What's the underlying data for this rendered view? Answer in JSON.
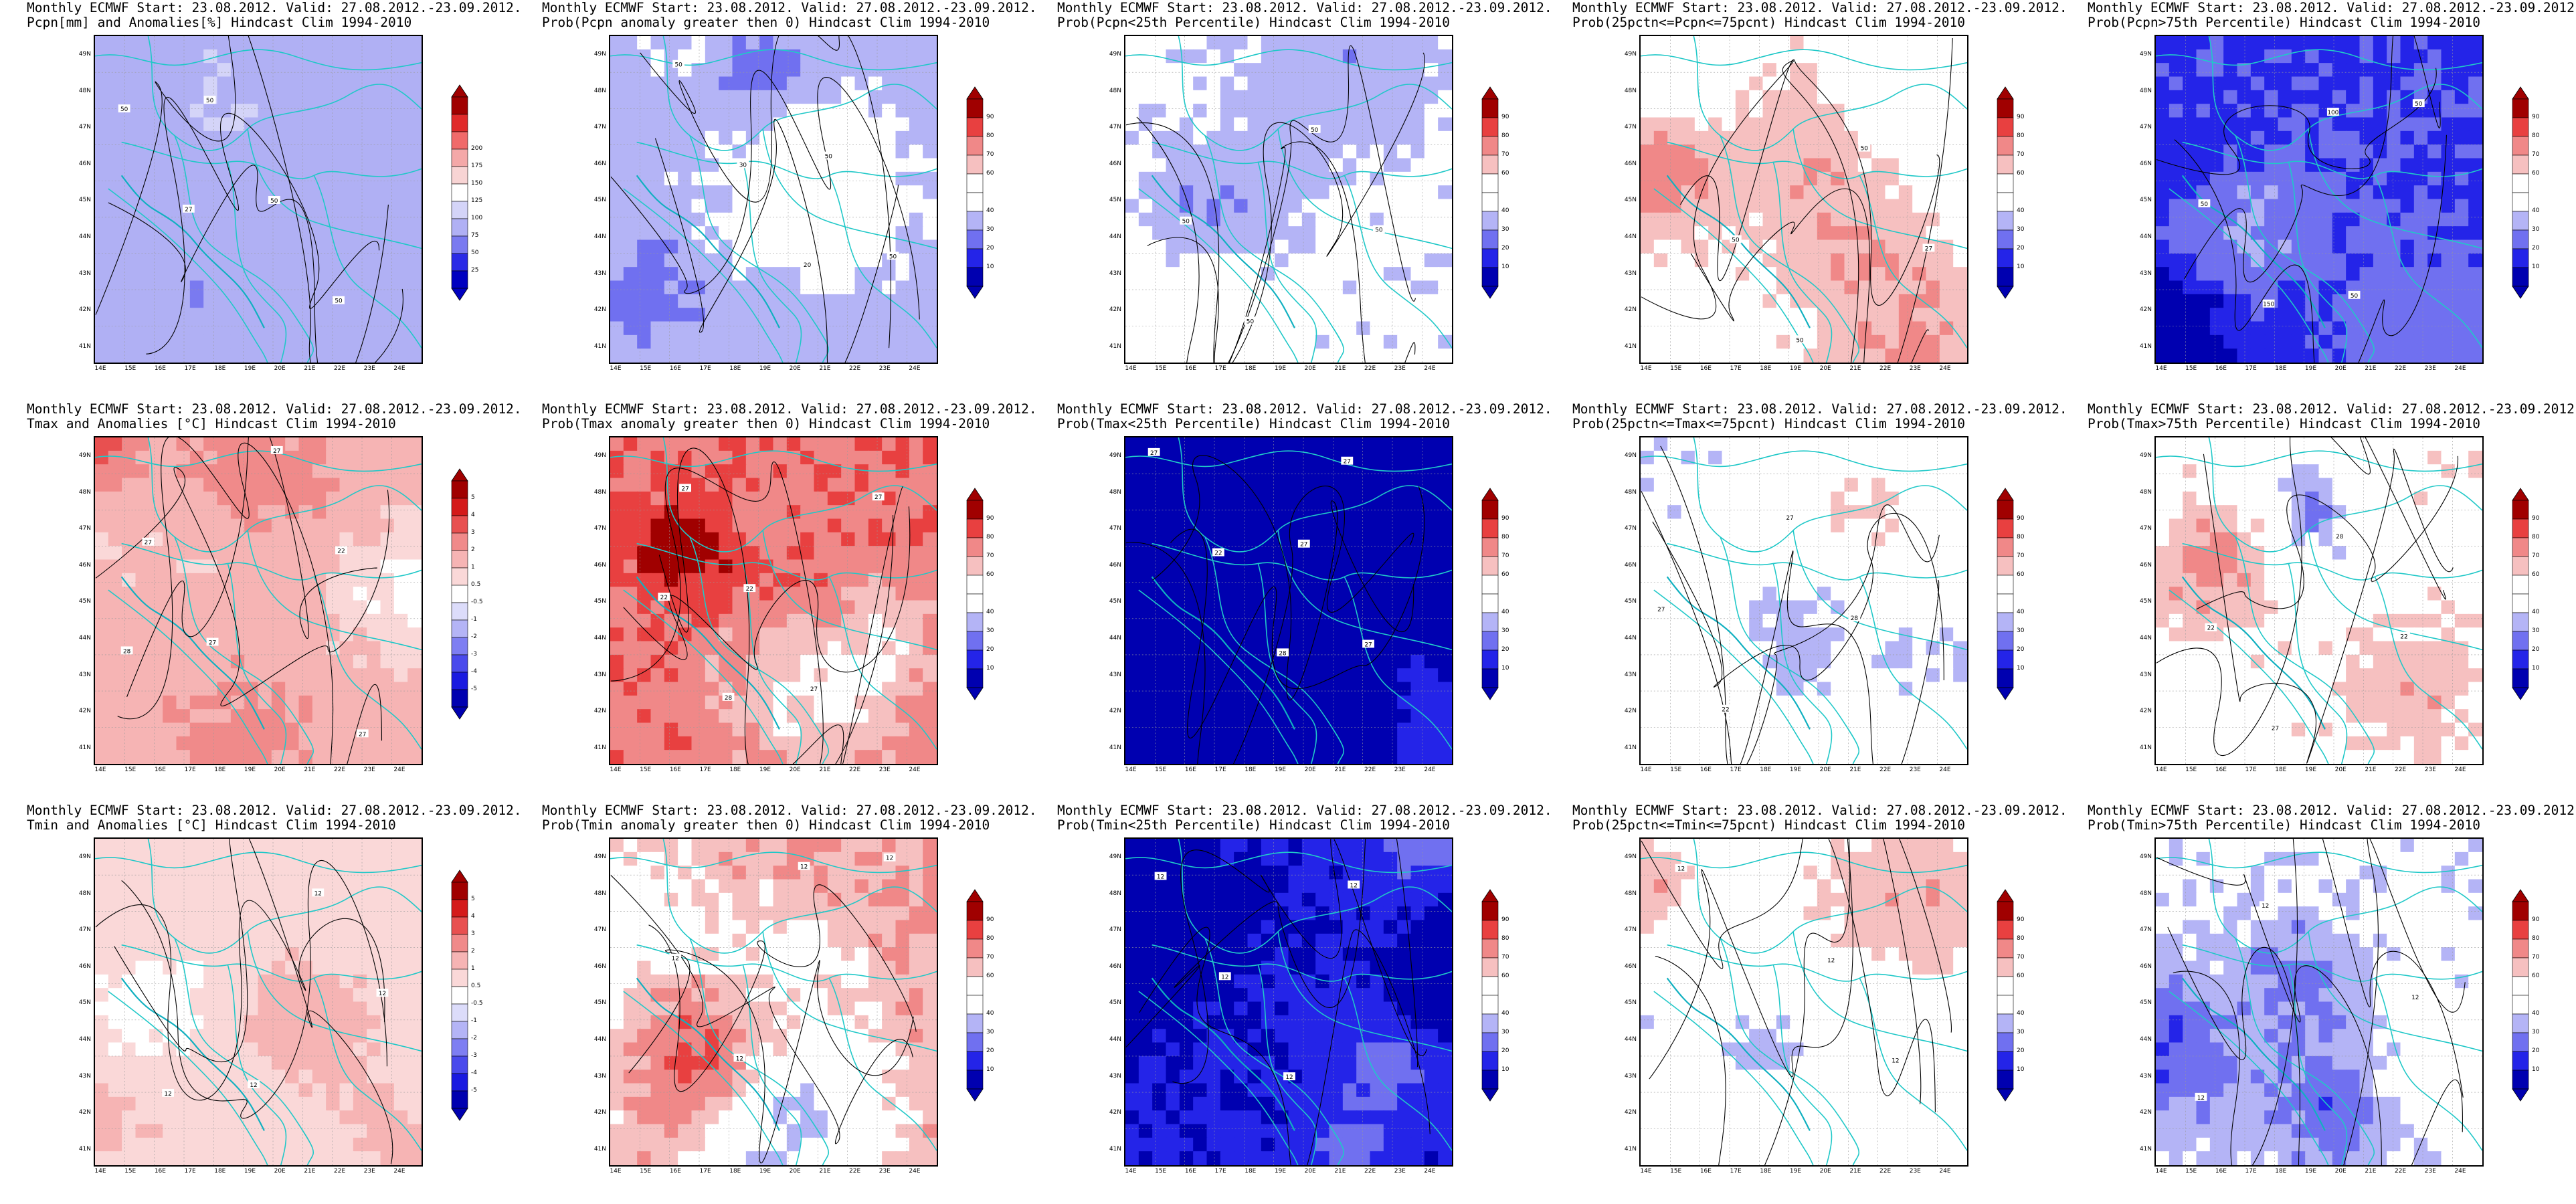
{
  "figure": {
    "title_line1": "Monthly ECMWF Start: 23.08.2012. Valid: 27.08.2012.-23.09.2012.",
    "lat_labels": [
      "49N",
      "48N",
      "47N",
      "46N",
      "45N",
      "44N",
      "43N",
      "42N",
      "41N"
    ],
    "lon_labels": [
      "14E",
      "15E",
      "16E",
      "17E",
      "18E",
      "19E",
      "20E",
      "21E",
      "22E",
      "23E",
      "24E"
    ],
    "palettes": {
      "pcpn": [
        "#0000c0",
        "#2a2ae6",
        "#7a7af0",
        "#b0b0f4",
        "#d4d4f8",
        "#ffffff",
        "#f8d4d4",
        "#f4a8a8",
        "#f06a6a",
        "#e02a2a",
        "#a00000"
      ],
      "temp": [
        "#0000b0",
        "#1a1ae0",
        "#4a4aec",
        "#7e7ef2",
        "#b4b4f6",
        "#dcdcfa",
        "#ffffff",
        "#fad8d8",
        "#f6b4b4",
        "#f08a8a",
        "#e85050",
        "#d41a1a",
        "#a00000"
      ],
      "prob": [
        "#0000b0",
        "#2424e8",
        "#7070f0",
        "#b4b4f6",
        "#ffffff",
        "#ffffff",
        "#f6c0c0",
        "#f08888",
        "#e84040",
        "#a00000"
      ]
    },
    "colorbar_labels": {
      "pcpn": [
        "25",
        "50",
        "75",
        "100",
        "125",
        "150",
        "175",
        "200"
      ],
      "temp": [
        "-5",
        "-4",
        "-3",
        "-2",
        "-1",
        "-0.5",
        "0.5",
        "1",
        "2",
        "3",
        "4",
        "5"
      ],
      "prob": [
        "10",
        "20",
        "30",
        "40",
        "60",
        "70",
        "80",
        "90"
      ]
    },
    "panels": [
      {
        "subtitle": "Pcpn[mm] and Anomalies[%] Hindcast Clim 1994-2010",
        "cbar": "pcpn",
        "base": 3,
        "var": 0.35,
        "seed": 11,
        "contours": [
          "50",
          "50",
          "50",
          "50",
          "27"
        ]
      },
      {
        "subtitle": "Prob(Pcpn anomaly greater then 0) Hindcast Clim 1994-2010",
        "cbar": "prob",
        "base": 3.1,
        "var": 0.8,
        "seed": 23,
        "contours": [
          "50",
          "50",
          "50",
          "30",
          "20"
        ]
      },
      {
        "subtitle": "Prob(Pcpn<25th Percentile) Hindcast Clim 1994-2010",
        "cbar": "prob",
        "base": 3.7,
        "var": 0.7,
        "seed": 37,
        "contours": [
          "50",
          "50",
          "50",
          "50"
        ]
      },
      {
        "subtitle": "Prob(25pctn<=Pcpn<=75pcnt) Hindcast Clim 1994-2010",
        "cbar": "prob",
        "base": 4.9,
        "var": 1.0,
        "seed": 41,
        "contours": [
          "50",
          "50",
          "50",
          "27"
        ]
      },
      {
        "subtitle": "Prob(Pcpn>75th Percentile) Hindcast Clim 1994-2010",
        "cbar": "prob",
        "base": 1.4,
        "var": 0.9,
        "seed": 53,
        "contours": [
          "50",
          "50",
          "50",
          "150",
          "100"
        ]
      },
      {
        "subtitle": "Tmax and Anomalies [°C] Hindcast Clim 1994-2010",
        "cbar": "temp",
        "base": 7.8,
        "var": 0.9,
        "seed": 61,
        "contours": [
          "27",
          "27",
          "27",
          "27",
          "22",
          "28"
        ]
      },
      {
        "subtitle": "Prob(Tmax anomaly greater then 0) Hindcast Clim 1994-2010",
        "cbar": "prob",
        "base": 7.3,
        "var": 1.2,
        "seed": 71,
        "contours": [
          "27",
          "22",
          "27",
          "27",
          "22",
          "28"
        ]
      },
      {
        "subtitle": "Prob(Tmax<25th Percentile) Hindcast Clim 1994-2010",
        "cbar": "prob",
        "base": 0.15,
        "var": 0.3,
        "seed": 83,
        "contours": [
          "27",
          "27",
          "27",
          "22",
          "28",
          "27"
        ]
      },
      {
        "subtitle": "Prob(25pctn<=Tmax<=75pcnt) Hindcast Clim 1994-2010",
        "cbar": "prob",
        "base": 4.1,
        "var": 1.1,
        "seed": 97,
        "contours": [
          "27",
          "22",
          "27",
          "28"
        ]
      },
      {
        "subtitle": "Prob(Tmax>75th Percentile) Hindcast Clim 1994-2010",
        "cbar": "prob",
        "base": 4.9,
        "var": 1.2,
        "seed": 101,
        "contours": [
          "22",
          "27",
          "28",
          "22"
        ]
      },
      {
        "subtitle": "Tmin and Anomalies [°C] Hindcast Clim 1994-2010",
        "cbar": "temp",
        "base": 6.9,
        "var": 0.6,
        "seed": 113,
        "contours": [
          "12",
          "12",
          "12",
          "12"
        ]
      },
      {
        "subtitle": "Prob(Tmin anomaly greater then 0) Hindcast Clim 1994-2010",
        "cbar": "prob",
        "base": 6.6,
        "var": 1.4,
        "seed": 127,
        "contours": [
          "12",
          "12",
          "12",
          "12"
        ]
      },
      {
        "subtitle": "Prob(Tmin<25th Percentile) Hindcast Clim 1994-2010",
        "cbar": "prob",
        "base": 0.6,
        "var": 0.7,
        "seed": 131,
        "contours": [
          "12",
          "12",
          "12",
          "12"
        ]
      },
      {
        "subtitle": "Prob(25pctn<=Tmin<=75pcnt) Hindcast Clim 1994-2010",
        "cbar": "prob",
        "base": 4.5,
        "var": 1.0,
        "seed": 149,
        "contours": [
          "12",
          "12",
          "12"
        ]
      },
      {
        "subtitle": "Prob(Tmin>75th Percentile) Hindcast Clim 1994-2010",
        "cbar": "prob",
        "base": 3.8,
        "var": 1.2,
        "seed": 157,
        "contours": [
          "12",
          "12",
          "12"
        ]
      }
    ]
  }
}
